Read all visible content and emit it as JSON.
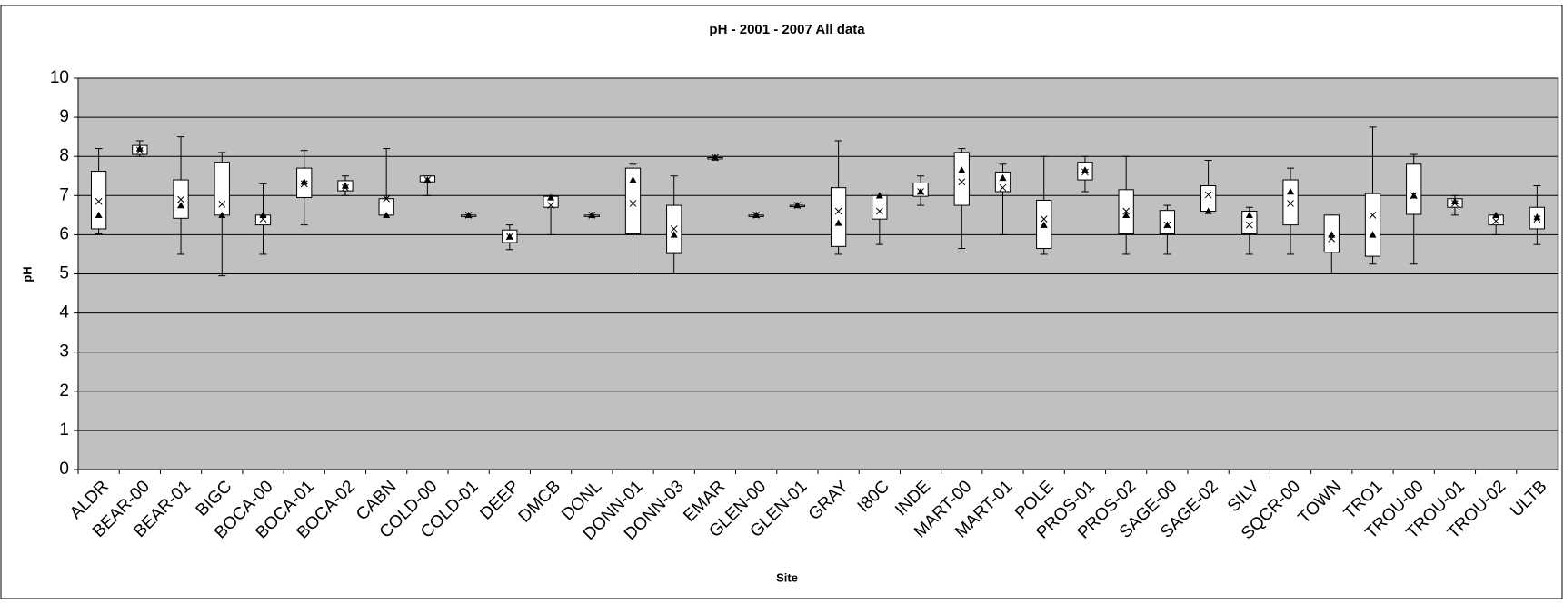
{
  "chart_data": {
    "type": "box",
    "title": "pH - 2001 - 2007 All data",
    "x_label": "Site",
    "y_label": "pH",
    "categories": [
      "ALDR",
      "BEAR-00",
      "BEAR-01",
      "BIGC",
      "BOCA-00",
      "BOCA-01",
      "BOCA-02",
      "CABN",
      "COLD-00",
      "COLD-01",
      "DEEP",
      "DMCB",
      "DONL",
      "DONN-01",
      "DONN-03",
      "EMAR",
      "GLEN-00",
      "GLEN-01",
      "GRAY",
      "I80C",
      "INDE",
      "MART-00",
      "MART-01",
      "POLE",
      "PROS-01",
      "PROS-02",
      "SAGE-00",
      "SAGE-02",
      "SILV",
      "SQCR-00",
      "TOWN",
      "TRO1",
      "TROU-00",
      "TROU-01",
      "TROU-02",
      "ULTB"
    ],
    "min": [
      6.02,
      8.0,
      5.5,
      4.95,
      5.5,
      6.25,
      7.0,
      6.5,
      7.0,
      6.5,
      5.62,
      6.0,
      6.5,
      5.0,
      5.0,
      7.97,
      6.5,
      6.75,
      5.5,
      5.75,
      6.75,
      5.65,
      6.0,
      5.5,
      7.1,
      5.5,
      5.5,
      6.6,
      5.5,
      5.5,
      5.0,
      5.25,
      5.25,
      6.5,
      6.0,
      5.75
    ],
    "q1": [
      6.15,
      8.05,
      6.42,
      6.5,
      6.25,
      6.95,
      7.12,
      6.5,
      7.35,
      6.5,
      5.8,
      6.7,
      6.5,
      6.02,
      5.52,
      7.97,
      6.5,
      6.75,
      5.7,
      6.4,
      6.98,
      6.75,
      7.1,
      5.65,
      7.4,
      6.02,
      6.02,
      6.6,
      6.02,
      6.25,
      5.55,
      5.45,
      6.52,
      6.7,
      6.25,
      6.15
    ],
    "q3": [
      7.62,
      8.28,
      7.4,
      7.85,
      6.5,
      7.7,
      7.38,
      6.92,
      7.5,
      6.5,
      6.12,
      6.98,
      6.5,
      7.7,
      6.75,
      7.97,
      6.5,
      6.75,
      7.2,
      7.0,
      7.32,
      8.1,
      7.6,
      6.88,
      7.85,
      7.15,
      6.62,
      7.25,
      6.6,
      7.4,
      6.5,
      7.05,
      7.8,
      6.92,
      6.5,
      6.7
    ],
    "max": [
      8.2,
      8.4,
      8.5,
      8.1,
      7.3,
      8.15,
      7.5,
      8.2,
      7.5,
      6.5,
      6.25,
      7.0,
      6.5,
      7.8,
      7.5,
      7.97,
      6.5,
      6.75,
      8.4,
      7.0,
      7.5,
      8.2,
      7.8,
      8.0,
      8.0,
      8.0,
      6.75,
      7.9,
      6.7,
      7.7,
      6.5,
      8.75,
      8.05,
      7.0,
      6.5,
      7.25
    ],
    "mean": [
      6.85,
      8.15,
      6.9,
      6.78,
      6.4,
      7.3,
      7.2,
      6.92,
      7.4,
      6.5,
      5.95,
      6.75,
      6.5,
      6.8,
      6.15,
      7.97,
      6.5,
      6.75,
      6.6,
      6.6,
      7.1,
      7.35,
      7.2,
      6.4,
      7.6,
      6.6,
      6.25,
      7.02,
      6.25,
      6.8,
      5.9,
      6.5,
      7.0,
      6.8,
      6.35,
      6.4
    ],
    "median": [
      6.5,
      8.2,
      6.75,
      6.5,
      6.5,
      7.35,
      7.25,
      6.5,
      7.4,
      6.5,
      5.95,
      6.95,
      6.5,
      7.4,
      6.0,
      7.97,
      6.5,
      6.75,
      6.3,
      7.0,
      7.1,
      7.65,
      7.45,
      6.25,
      7.65,
      6.5,
      6.25,
      6.6,
      6.5,
      7.1,
      6.0,
      6.0,
      7.0,
      6.85,
      6.5,
      6.45
    ],
    "ylim": [
      0,
      10
    ],
    "yticks": [
      0,
      1,
      2,
      3,
      4,
      5,
      6,
      7,
      8,
      9,
      10
    ],
    "grid": true,
    "plot_color": "#c0c0c0",
    "box_color": "#ffffff"
  }
}
